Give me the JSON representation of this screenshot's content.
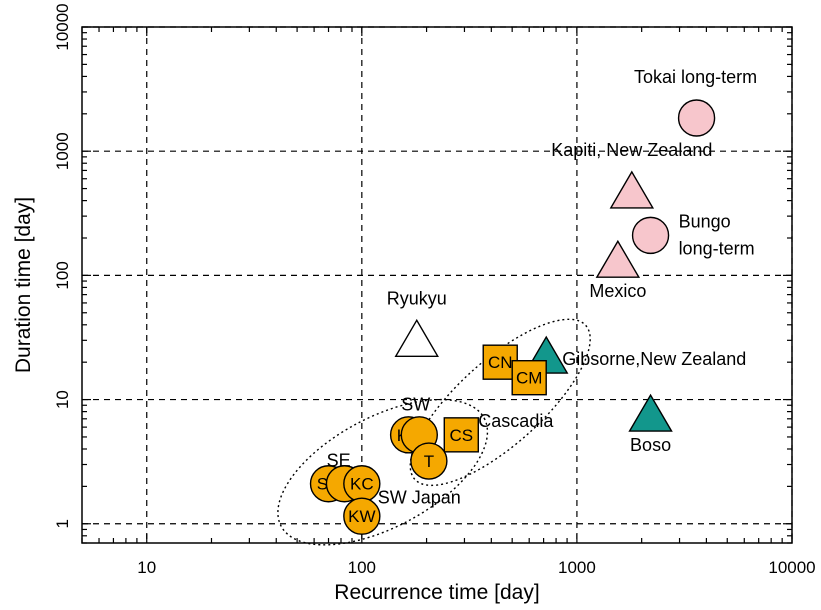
{
  "chart_data": {
    "type": "scatter",
    "title": "",
    "xlabel": "Recurrence time [day]",
    "ylabel": "Duration time [day]",
    "xscale": "log",
    "yscale": "log",
    "xlim": [
      5,
      10000
    ],
    "ylim": [
      0.7,
      10000
    ],
    "grid": true,
    "x_ticks": [
      {
        "value": 10,
        "label": "10"
      },
      {
        "value": 100,
        "label": "100"
      },
      {
        "value": 1000,
        "label": "1000"
      },
      {
        "value": 10000,
        "label": "10000"
      }
    ],
    "y_ticks": [
      {
        "value": 1,
        "label": "1"
      },
      {
        "value": 10,
        "label": "10"
      },
      {
        "value": 100,
        "label": "100"
      },
      {
        "value": 1000,
        "label": "1000"
      },
      {
        "value": 10000,
        "label": "10000"
      }
    ],
    "colors": {
      "orange": "#f5a800",
      "pink": "#f7c6cc",
      "teal": "#12978c",
      "white": "#ffffff"
    },
    "points": [
      {
        "id": "tokai",
        "x": 3600,
        "y": 1850,
        "marker": "circle",
        "color": "pink",
        "label": "",
        "annotation": "Tokai long-term"
      },
      {
        "id": "bungo",
        "x": 2200,
        "y": 210,
        "marker": "circle",
        "color": "pink",
        "label": "",
        "annotation": "Bungo long-term"
      },
      {
        "id": "kapiti",
        "x": 1800,
        "y": 470,
        "marker": "triangle",
        "color": "pink",
        "label": "",
        "annotation": "Kapiti, New Zealand"
      },
      {
        "id": "mexico",
        "x": 1550,
        "y": 130,
        "marker": "triangle",
        "color": "pink",
        "label": "",
        "annotation": "Mexico"
      },
      {
        "id": "ryukyu",
        "x": 180,
        "y": 30,
        "marker": "triangle",
        "color": "white",
        "label": "",
        "annotation": "Ryukyu"
      },
      {
        "id": "gibsorne",
        "x": 720,
        "y": 22,
        "marker": "triangle",
        "color": "teal",
        "label": "",
        "annotation": "Gibsorne,New Zealand"
      },
      {
        "id": "boso",
        "x": 2200,
        "y": 7.5,
        "marker": "triangle",
        "color": "teal",
        "label": "",
        "annotation": "Boso"
      },
      {
        "id": "cn",
        "x": 440,
        "y": 20,
        "marker": "square",
        "color": "orange",
        "label": "CN",
        "annotation": ""
      },
      {
        "id": "cm",
        "x": 600,
        "y": 15,
        "marker": "square",
        "color": "orange",
        "label": "CM",
        "annotation": ""
      },
      {
        "id": "cs",
        "x": 290,
        "y": 5.2,
        "marker": "square",
        "color": "orange",
        "label": "CS",
        "annotation": ""
      },
      {
        "id": "sc",
        "x": 70,
        "y": 2.1,
        "marker": "circle",
        "color": "orange",
        "label": "SC",
        "annotation": ""
      },
      {
        "id": "se",
        "x": 83,
        "y": 2.1,
        "marker": "circle",
        "color": "orange",
        "label": "",
        "annotation": ""
      },
      {
        "id": "kc",
        "x": 100,
        "y": 2.1,
        "marker": "circle",
        "color": "orange",
        "label": "KC",
        "annotation": ""
      },
      {
        "id": "kw",
        "x": 100,
        "y": 1.15,
        "marker": "circle",
        "color": "orange",
        "label": "KW",
        "annotation": ""
      },
      {
        "id": "kn",
        "x": 165,
        "y": 5.2,
        "marker": "circle",
        "color": "orange",
        "label": "KN",
        "annotation": ""
      },
      {
        "id": "sw",
        "x": 185,
        "y": 5.2,
        "marker": "circle",
        "color": "orange",
        "label": "",
        "annotation": ""
      },
      {
        "id": "t",
        "x": 205,
        "y": 3.2,
        "marker": "circle",
        "color": "orange",
        "label": "T",
        "annotation": ""
      }
    ],
    "text_annotations": [
      {
        "id": "sw-label",
        "text": "SW",
        "x": 178,
        "y": 8.2
      },
      {
        "id": "se-label",
        "text": "SE",
        "x": 78,
        "y": 2.9
      },
      {
        "id": "cascadia",
        "text": "Cascadia",
        "x": 520,
        "y": 6.0
      },
      {
        "id": "swjapan",
        "text": "SW Japan",
        "x": 185,
        "y": 1.45
      }
    ],
    "groups": [
      {
        "name": "Cascadia",
        "shape": "dotted-ellipse"
      },
      {
        "name": "SW Japan",
        "shape": "dotted-ellipse"
      }
    ]
  }
}
